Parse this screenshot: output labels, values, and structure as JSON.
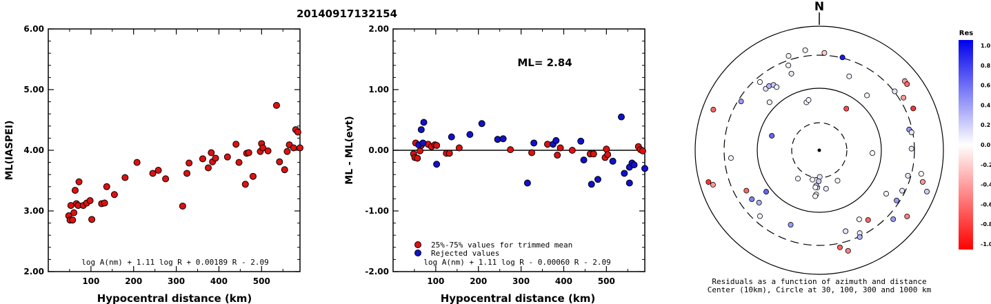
{
  "header": {
    "event_id": "20140917132154"
  },
  "colors": {
    "accepted": "#dd1111",
    "rejected": "#1111cc",
    "marker_edge": "#000000",
    "axis": "#000000"
  },
  "chart_data": [
    {
      "type": "scatter",
      "xlabel": "Hypocentral distance (km)",
      "ylabel": "ML(IASPEI)",
      "xlim": [
        0,
        590
      ],
      "ylim": [
        2.0,
        6.0
      ],
      "x_ticks": [
        "100",
        "200",
        "300",
        "400",
        "500"
      ],
      "y_ticks": [
        "2.00",
        "3.00",
        "4.00",
        "5.00",
        "6.00"
      ],
      "formula": "log A(nm) + 1.11 log R + 0.00189 R - 2.09",
      "series": [
        {
          "points": [
            [
              48,
              2.92
            ],
            [
              51,
              2.85
            ],
            [
              53,
              3.09
            ],
            [
              57,
              2.85
            ],
            [
              60,
              2.97
            ],
            [
              63,
              3.34
            ],
            [
              66,
              3.12
            ],
            [
              70,
              3.09
            ],
            [
              72,
              3.48
            ],
            [
              82,
              3.09
            ],
            [
              90,
              3.13
            ],
            [
              98,
              3.17
            ],
            [
              102,
              2.86
            ],
            [
              125,
              3.12
            ],
            [
              132,
              3.13
            ],
            [
              137,
              3.4
            ],
            [
              155,
              3.27
            ],
            [
              180,
              3.55
            ],
            [
              208,
              3.8
            ],
            [
              245,
              3.62
            ],
            [
              258,
              3.67
            ],
            [
              275,
              3.53
            ],
            [
              315,
              3.08
            ],
            [
              325,
              3.62
            ],
            [
              330,
              3.79
            ],
            [
              362,
              3.86
            ],
            [
              375,
              3.71
            ],
            [
              382,
              3.96
            ],
            [
              385,
              3.81
            ],
            [
              392,
              3.87
            ],
            [
              420,
              3.89
            ],
            [
              440,
              4.1
            ],
            [
              447,
              3.8
            ],
            [
              462,
              3.44
            ],
            [
              465,
              3.95
            ],
            [
              470,
              3.96
            ],
            [
              480,
              3.57
            ],
            [
              497,
              3.98
            ],
            [
              500,
              4.11
            ],
            [
              503,
              4.04
            ],
            [
              515,
              3.99
            ],
            [
              535,
              4.74
            ],
            [
              542,
              3.81
            ],
            [
              554,
              3.68
            ],
            [
              560,
              3.98
            ],
            [
              565,
              4.09
            ],
            [
              575,
              4.04
            ],
            [
              580,
              4.34
            ],
            [
              585,
              4.3
            ],
            [
              590,
              4.04
            ]
          ]
        }
      ]
    },
    {
      "type": "scatter",
      "xlabel": "Hypocentral distance (km)",
      "ylabel": "ML - ML(evt)",
      "xlim": [
        0,
        590
      ],
      "ylim": [
        -2.0,
        2.0
      ],
      "x_ticks": [
        "100",
        "200",
        "300",
        "400",
        "500"
      ],
      "y_ticks": [
        "-2.00",
        "-1.00",
        "0.00",
        "1.00",
        "2.00"
      ],
      "ml_label": "ML= 2.84",
      "formula": "log A(nm) + 1.11 log R - 0.00060 R - 2.09",
      "legend": [
        "25%-75% values for trimmed mean",
        "Rejected values"
      ],
      "series": [
        {
          "name": "25%-75% values for trimmed mean",
          "points": [
            [
              48,
              -0.06
            ],
            [
              51,
              -0.12
            ],
            [
              53,
              0.12
            ],
            [
              57,
              -0.13
            ],
            [
              63,
              -0.01
            ],
            [
              66,
              0.08
            ],
            [
              82,
              0.1
            ],
            [
              90,
              0.06
            ],
            [
              98,
              0.09
            ],
            [
              102,
              0.08
            ],
            [
              125,
              -0.05
            ],
            [
              132,
              -0.05
            ],
            [
              155,
              0.04
            ],
            [
              275,
              0.01
            ],
            [
              325,
              -0.04
            ],
            [
              362,
              0.1
            ],
            [
              385,
              -0.08
            ],
            [
              392,
              0.04
            ],
            [
              420,
              0.0
            ],
            [
              462,
              -0.06
            ],
            [
              470,
              -0.06
            ],
            [
              497,
              -0.12
            ],
            [
              500,
              0.02
            ],
            [
              503,
              -0.07
            ],
            [
              575,
              0.06
            ],
            [
              580,
              0.01
            ],
            [
              585,
              -0.01
            ]
          ]
        },
        {
          "name": "Rejected values",
          "points": [
            [
              60,
              0.09
            ],
            [
              66,
              0.34
            ],
            [
              70,
              0.12
            ],
            [
              72,
              0.46
            ],
            [
              102,
              -0.23
            ],
            [
              137,
              0.22
            ],
            [
              180,
              0.26
            ],
            [
              208,
              0.44
            ],
            [
              245,
              0.18
            ],
            [
              258,
              0.19
            ],
            [
              315,
              -0.54
            ],
            [
              330,
              0.12
            ],
            [
              375,
              0.1
            ],
            [
              382,
              0.16
            ],
            [
              440,
              0.15
            ],
            [
              447,
              -0.16
            ],
            [
              465,
              -0.56
            ],
            [
              480,
              -0.48
            ],
            [
              515,
              -0.18
            ],
            [
              535,
              0.55
            ],
            [
              542,
              -0.38
            ],
            [
              554,
              -0.28
            ],
            [
              560,
              -0.21
            ],
            [
              565,
              -0.24
            ],
            [
              554,
              -0.54
            ],
            [
              590,
              -0.3
            ]
          ]
        }
      ]
    },
    {
      "type": "scatter",
      "subtype": "polar",
      "north_label": "N",
      "caption_line1": "Residuals as a function of azimuth and distance",
      "caption_line2": "Center (10km), Circle at 30, 100, 300 and 1000 km",
      "colorbar": {
        "title": "Res",
        "labels": [
          "1.0",
          "0.8",
          "0.6",
          "0.4",
          "0.2",
          "0.0",
          "-0.2",
          "-0.4",
          "-0.6",
          "-0.8",
          "-1.0"
        ],
        "max_color": "#0000ee",
        "zero_color": "#ffffff",
        "min_color": "#ff0000"
      },
      "points_az_dist_res": [
        [
          3,
          550,
          -0.2
        ],
        [
          14,
          540,
          0.9
        ],
        [
          22,
          450,
          0.05
        ],
        [
          33,
          280,
          -0.7
        ],
        [
          41,
          410,
          0.05
        ],
        [
          51,
          620,
          -0.4
        ],
        [
          52,
          540,
          0.1
        ],
        [
          53,
          620,
          -0.6
        ],
        [
          58,
          560,
          -0.4
        ],
        [
          66,
          580,
          -0.8
        ],
        [
          77,
          520,
          0.4
        ],
        [
          79,
          530,
          0.1
        ],
        [
          89,
          520,
          0.1
        ],
        [
          93,
          300,
          0.0
        ],
        [
          103,
          590,
          0.0
        ],
        [
          106,
          520,
          0.1
        ],
        [
          107,
          610,
          -0.4
        ],
        [
          111,
          650,
          0.2
        ],
        [
          116,
          520,
          0.1
        ],
        [
          123,
          520,
          0.4
        ],
        [
          123,
          450,
          0.05
        ],
        [
          127,
          620,
          -0.5
        ],
        [
          133,
          570,
          0.4
        ],
        [
          145,
          480,
          -0.6
        ],
        [
          149,
          200,
          0.05
        ],
        [
          150,
          450,
          0.05
        ],
        [
          154,
          520,
          0.1
        ],
        [
          155,
          540,
          0.3
        ],
        [
          162,
          480,
          0.1
        ],
        [
          164,
          590,
          -0.5
        ],
        [
          168,
          560,
          -0.6
        ],
        [
          170,
          220,
          0.1
        ],
        [
          179,
          150,
          0.1
        ],
        [
          181,
          175,
          0.2
        ],
        [
          183,
          210,
          0.1
        ],
        [
          184,
          250,
          0.05
        ],
        [
          185,
          200,
          0.2
        ],
        [
          185,
          260,
          0.05
        ],
        [
          186,
          210,
          0.0
        ],
        [
          193,
          170,
          0.05
        ],
        [
          201,
          450,
          0.4
        ],
        [
          217,
          200,
          0.05
        ],
        [
          222,
          500,
          0.05
        ],
        [
          229,
          450,
          0.3
        ],
        [
          232,
          380,
          0.6
        ],
        [
          234,
          470,
          0.5
        ],
        [
          241,
          470,
          -0.6
        ],
        [
          252,
          630,
          -0.4
        ],
        [
          254,
          650,
          -0.8
        ],
        [
          265,
          500,
          0.05
        ],
        [
          287,
          280,
          0.6
        ],
        [
          291,
          640,
          -0.6
        ],
        [
          302,
          520,
          0.4
        ],
        [
          314,
          390,
          0.05
        ],
        [
          319,
          510,
          0.0
        ],
        [
          319,
          460,
          0.1
        ],
        [
          322,
          460,
          0.3
        ],
        [
          325,
          450,
          0.2
        ],
        [
          326,
          430,
          0.05
        ],
        [
          340,
          460,
          0.1
        ],
        [
          340,
          510,
          0.05
        ],
        [
          342,
          560,
          0.05
        ],
        [
          345,
          280,
          0.05
        ],
        [
          348,
          290,
          0.05
        ],
        [
          352,
          570,
          0.05
        ]
      ]
    }
  ]
}
